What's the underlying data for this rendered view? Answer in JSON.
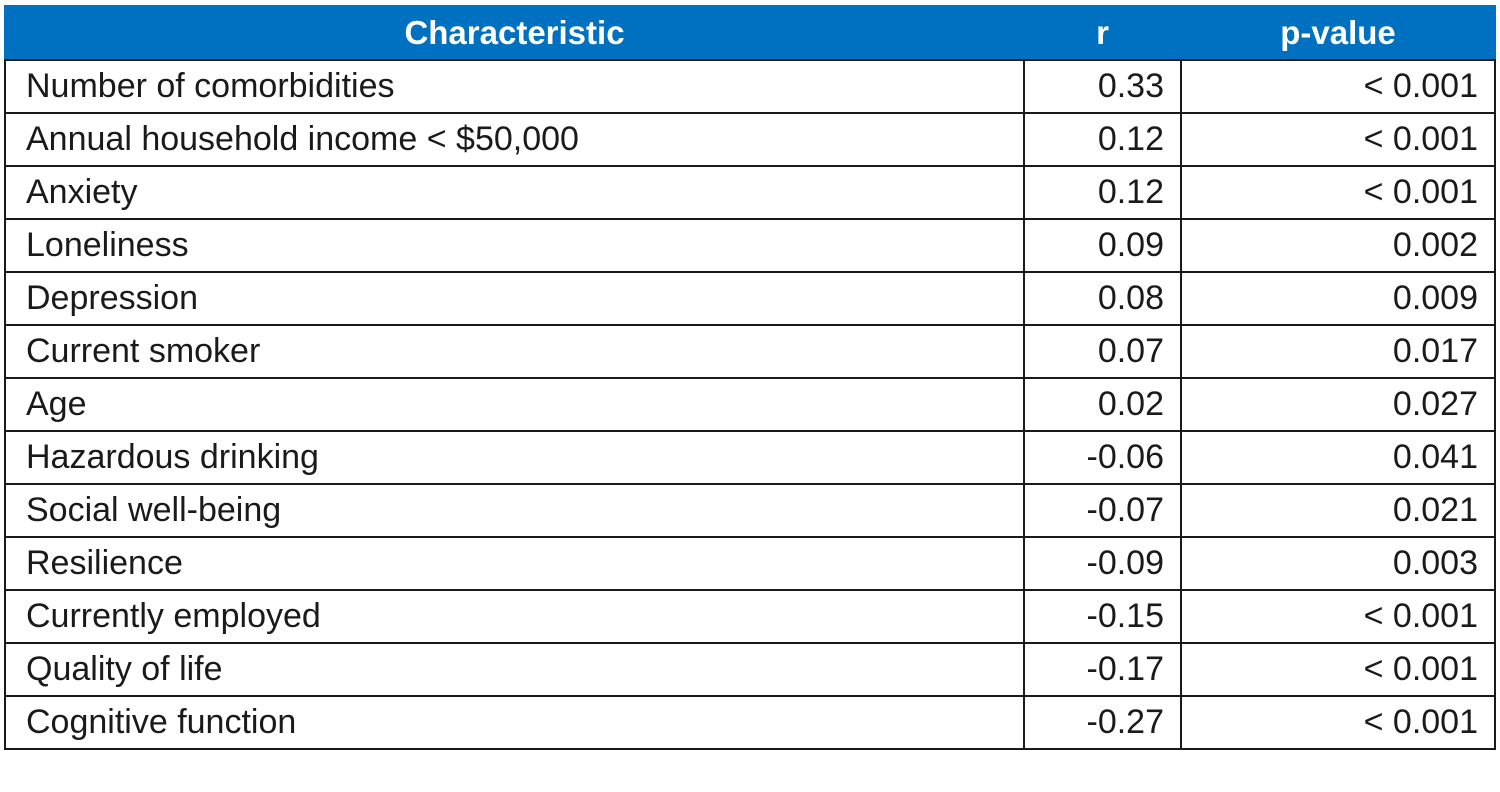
{
  "chart_data": {
    "type": "table",
    "columns": [
      "Characteristic",
      "r",
      "p-value"
    ],
    "rows": [
      {
        "characteristic": "Number of comorbidities",
        "r": "0.33",
        "p": "< 0.001"
      },
      {
        "characteristic": "Annual household income < $50,000",
        "r": "0.12",
        "p": "< 0.001"
      },
      {
        "characteristic": "Anxiety",
        "r": "0.12",
        "p": "< 0.001"
      },
      {
        "characteristic": "Loneliness",
        "r": "0.09",
        "p": "0.002"
      },
      {
        "characteristic": "Depression",
        "r": "0.08",
        "p": "0.009"
      },
      {
        "characteristic": "Current smoker",
        "r": "0.07",
        "p": "0.017"
      },
      {
        "characteristic": "Age",
        "r": "0.02",
        "p": "0.027"
      },
      {
        "characteristic": "Hazardous drinking",
        "r": "-0.06",
        "p": "0.041"
      },
      {
        "characteristic": "Social well-being",
        "r": "-0.07",
        "p": "0.021"
      },
      {
        "characteristic": "Resilience",
        "r": "-0.09",
        "p": "0.003"
      },
      {
        "characteristic": "Currently employed",
        "r": "-0.15",
        "p": "< 0.001"
      },
      {
        "characteristic": "Quality of life",
        "r": "-0.17",
        "p": "< 0.001"
      },
      {
        "characteristic": "Cognitive function",
        "r": "-0.27",
        "p": "< 0.001"
      }
    ],
    "header_color": "#0070c0",
    "header_text_color": "#ffffff"
  }
}
